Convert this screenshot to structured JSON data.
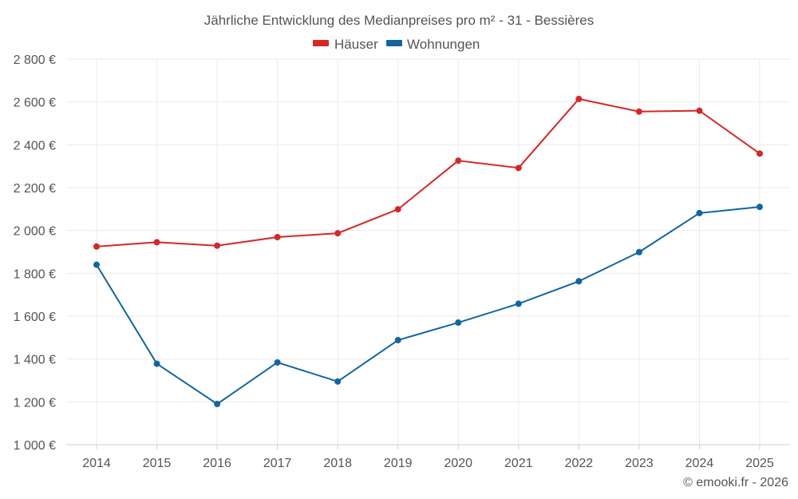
{
  "chart_data": {
    "type": "line",
    "title": "Jährliche Entwicklung des Medianpreises pro m² - 31 - Bessières",
    "categories": [
      "2014",
      "2015",
      "2016",
      "2017",
      "2018",
      "2019",
      "2020",
      "2021",
      "2022",
      "2023",
      "2024",
      "2025"
    ],
    "series": [
      {
        "name": "Häuser",
        "color": "#d62728",
        "values": [
          1925,
          1945,
          1929,
          1969,
          1987,
          2099,
          2326,
          2292,
          2614,
          2555,
          2559,
          2359
        ]
      },
      {
        "name": "Wohnungen",
        "color": "#1066a0",
        "values": [
          1840,
          1378,
          1190,
          1384,
          1295,
          1488,
          1570,
          1658,
          1763,
          1899,
          2081,
          2110
        ]
      }
    ],
    "ylim": [
      1000,
      2800
    ],
    "yticks": [
      1000,
      1200,
      1400,
      1600,
      1800,
      2000,
      2200,
      2400,
      2600,
      2800
    ],
    "ytick_labels": [
      "1 000 €",
      "1 200 €",
      "1 400 €",
      "1 600 €",
      "1 800 €",
      "2 000 €",
      "2 200 €",
      "2 400 €",
      "2 600 €",
      "2 800 €"
    ],
    "legend": "top-center",
    "grid": true
  },
  "credit": "© emooki.fr - 2026"
}
